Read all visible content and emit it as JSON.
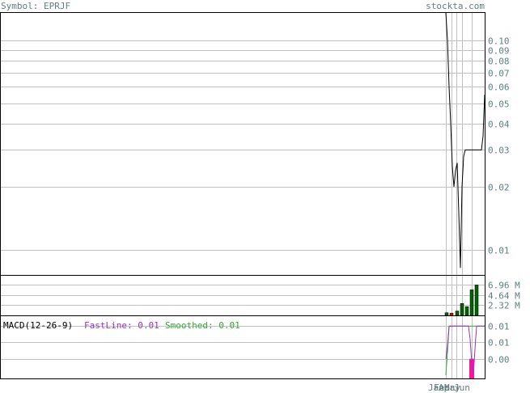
{
  "header": {
    "symbol_label": "Symbol: EPRJF",
    "site_label": "stockta.com"
  },
  "colors": {
    "text": "#5f7f7f",
    "grid": "#c0c0c0",
    "price_line": "#000000",
    "volume_up": "#006400",
    "volume_down": "#ff0000",
    "macd_fast": "#9932cc",
    "macd_smoothed": "#33aa33",
    "histogram": "#ff1493"
  },
  "chart_data": [
    {
      "type": "line",
      "panel": "price",
      "scale": "log",
      "ylim": [
        0.0076,
        0.135
      ],
      "yticks": [
        0.1,
        0.09,
        0.08,
        0.07,
        0.06,
        0.05,
        0.04,
        0.03,
        0.02,
        0.01
      ],
      "ytick_labels": [
        "0.10",
        "0.09",
        "0.08",
        "0.07",
        "0.06",
        "0.05",
        "0.04",
        "0.03",
        "0.02",
        "0.01"
      ],
      "grid": true,
      "series": [
        {
          "x": [
            0,
            1,
            2,
            3,
            4,
            5,
            6,
            7,
            8,
            9,
            10,
            11,
            12,
            13,
            14,
            15,
            16,
            17,
            18,
            19,
            20,
            21,
            22,
            23,
            24
          ],
          "values": [
            0.135,
            0.1,
            0.06,
            0.04,
            0.025,
            0.02,
            0.024,
            0.026,
            0.015,
            0.0082,
            0.02,
            0.028,
            0.03,
            0.03,
            0.03,
            0.03,
            0.03,
            0.03,
            0.03,
            0.03,
            0.03,
            0.03,
            0.03,
            0.035,
            0.055
          ]
        }
      ]
    },
    {
      "type": "bar",
      "panel": "volume",
      "ylim": [
        0,
        9000000
      ],
      "yticks": [
        6960000,
        4640000,
        2320000
      ],
      "ytick_labels": [
        "6.96 M",
        "4.64 M",
        "2.32 M"
      ],
      "bars": [
        {
          "x": 0.5,
          "value": 600000,
          "dir": "up"
        },
        {
          "x": 3.5,
          "value": 500000,
          "dir": "down"
        },
        {
          "x": 7,
          "value": 1000000,
          "dir": "up"
        },
        {
          "x": 10,
          "value": 2700000,
          "dir": "up"
        },
        {
          "x": 13,
          "value": 2000000,
          "dir": "up"
        },
        {
          "x": 16,
          "value": 5800000,
          "dir": "up"
        },
        {
          "x": 19,
          "value": 6900000,
          "dir": "up"
        }
      ]
    },
    {
      "type": "line",
      "panel": "macd",
      "label": "MACD(12-26-9)",
      "fast_label": "FastLine: 0.01",
      "smoothed_label": "Smoothed: 0.01",
      "ylim": [
        -0.006,
        0.013
      ],
      "yticks": [
        0.01,
        0.005,
        0.0
      ],
      "ytick_labels": [
        "0.01",
        "0.01",
        "0.00"
      ],
      "series": [
        {
          "name": "FastLine",
          "color": "macd_fast",
          "x": [
            0,
            1,
            2,
            3,
            4,
            5,
            6,
            7,
            8,
            9,
            10,
            11,
            12,
            13,
            14,
            15,
            16,
            17,
            18,
            19,
            20,
            21,
            22,
            23,
            24
          ],
          "values": [
            0.0,
            0.004,
            0.01,
            0.01,
            0.01,
            0.01,
            0.01,
            0.01,
            0.01,
            0.01,
            0.01,
            0.01,
            0.01,
            0.01,
            0.01,
            0.006,
            -0.001,
            -0.005,
            0.003,
            0.01,
            0.01,
            0.01,
            0.01,
            0.01,
            0.01
          ]
        },
        {
          "name": "Smoothed",
          "color": "macd_smoothed",
          "x": [
            0,
            1,
            2,
            3,
            4,
            5,
            6,
            7,
            8,
            9,
            10,
            11,
            12,
            13,
            14,
            15,
            16,
            17,
            18,
            19,
            20,
            21,
            22,
            23,
            24
          ],
          "values": [
            -0.005,
            0.002,
            0.01,
            0.01,
            0.01,
            0.01,
            0.01,
            0.01,
            0.01,
            0.01,
            0.01,
            0.01,
            0.01,
            0.01,
            0.01,
            0.01,
            0.01,
            0.01,
            0.01,
            0.01,
            0.01,
            0.01,
            0.01,
            0.01,
            0.01
          ]
        }
      ],
      "histogram": [
        {
          "x": 15.5,
          "value": -0.0045
        },
        {
          "x": 16.5,
          "value": -0.006
        }
      ]
    }
  ],
  "x_axis": {
    "range": [
      0,
      24
    ],
    "ticks": [
      {
        "x": 0,
        "label": "Jan"
      },
      {
        "x": 3.3,
        "label": "Feb"
      },
      {
        "x": 6.6,
        "label": "Apr"
      },
      {
        "x": 10,
        "label": "May"
      },
      {
        "x": 16,
        "label": "Jun"
      }
    ]
  }
}
